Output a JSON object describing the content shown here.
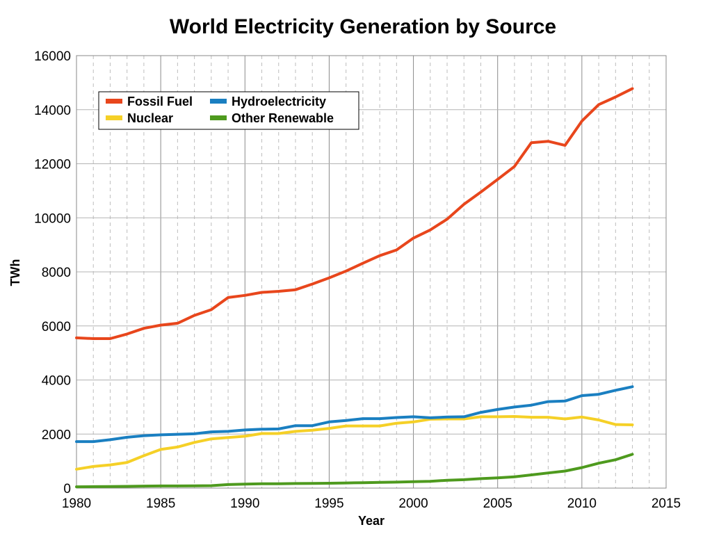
{
  "chart_data": {
    "type": "line",
    "title": "World Electricity Generation by Source",
    "xlabel": "Year",
    "ylabel": "TWh",
    "xlim": [
      1980,
      2015
    ],
    "ylim": [
      0,
      16000
    ],
    "x_ticks": [
      1980,
      1985,
      1990,
      1995,
      2000,
      2005,
      2010,
      2015
    ],
    "y_ticks": [
      0,
      2000,
      4000,
      6000,
      8000,
      10000,
      12000,
      14000,
      16000
    ],
    "grid": {
      "major_x": true,
      "minor_x_dashed": true,
      "major_y": true
    },
    "legend_position": "top-left",
    "x": [
      1980,
      1981,
      1982,
      1983,
      1984,
      1985,
      1986,
      1987,
      1988,
      1989,
      1990,
      1991,
      1992,
      1993,
      1994,
      1995,
      1996,
      1997,
      1998,
      1999,
      2000,
      2001,
      2002,
      2003,
      2004,
      2005,
      2006,
      2007,
      2008,
      2009,
      2010,
      2011,
      2012,
      2013
    ],
    "series": [
      {
        "name": "Fossil Fuel",
        "color": "#e8461c",
        "values": [
          5560,
          5530,
          5530,
          5700,
          5910,
          6030,
          6100,
          6390,
          6600,
          7050,
          7130,
          7240,
          7280,
          7340,
          7550,
          7780,
          8030,
          8320,
          8600,
          8810,
          9250,
          9550,
          9950,
          10500,
          10950,
          11420,
          11900,
          12780,
          12830,
          12680,
          13580,
          14190,
          14470,
          14780
        ]
      },
      {
        "name": "Hydroelectricity",
        "color": "#1a7fc1",
        "values": [
          1720,
          1720,
          1790,
          1880,
          1940,
          1970,
          1990,
          2010,
          2080,
          2100,
          2150,
          2180,
          2190,
          2310,
          2310,
          2450,
          2500,
          2570,
          2570,
          2610,
          2640,
          2600,
          2630,
          2640,
          2800,
          2910,
          3000,
          3070,
          3200,
          3220,
          3420,
          3470,
          3620,
          3750
        ]
      },
      {
        "name": "Nuclear",
        "color": "#f5d027",
        "values": [
          700,
          800,
          860,
          950,
          1200,
          1430,
          1520,
          1690,
          1820,
          1870,
          1920,
          2020,
          2020,
          2100,
          2140,
          2210,
          2300,
          2300,
          2300,
          2400,
          2450,
          2550,
          2560,
          2560,
          2640,
          2640,
          2650,
          2620,
          2620,
          2560,
          2630,
          2520,
          2350,
          2340
        ]
      },
      {
        "name": "Other Renewable",
        "color": "#4e9a1e",
        "values": [
          50,
          55,
          60,
          65,
          75,
          80,
          80,
          85,
          90,
          130,
          150,
          160,
          160,
          170,
          175,
          180,
          190,
          200,
          210,
          220,
          240,
          250,
          290,
          310,
          350,
          380,
          420,
          490,
          560,
          630,
          760,
          920,
          1050,
          1250
        ]
      }
    ]
  }
}
